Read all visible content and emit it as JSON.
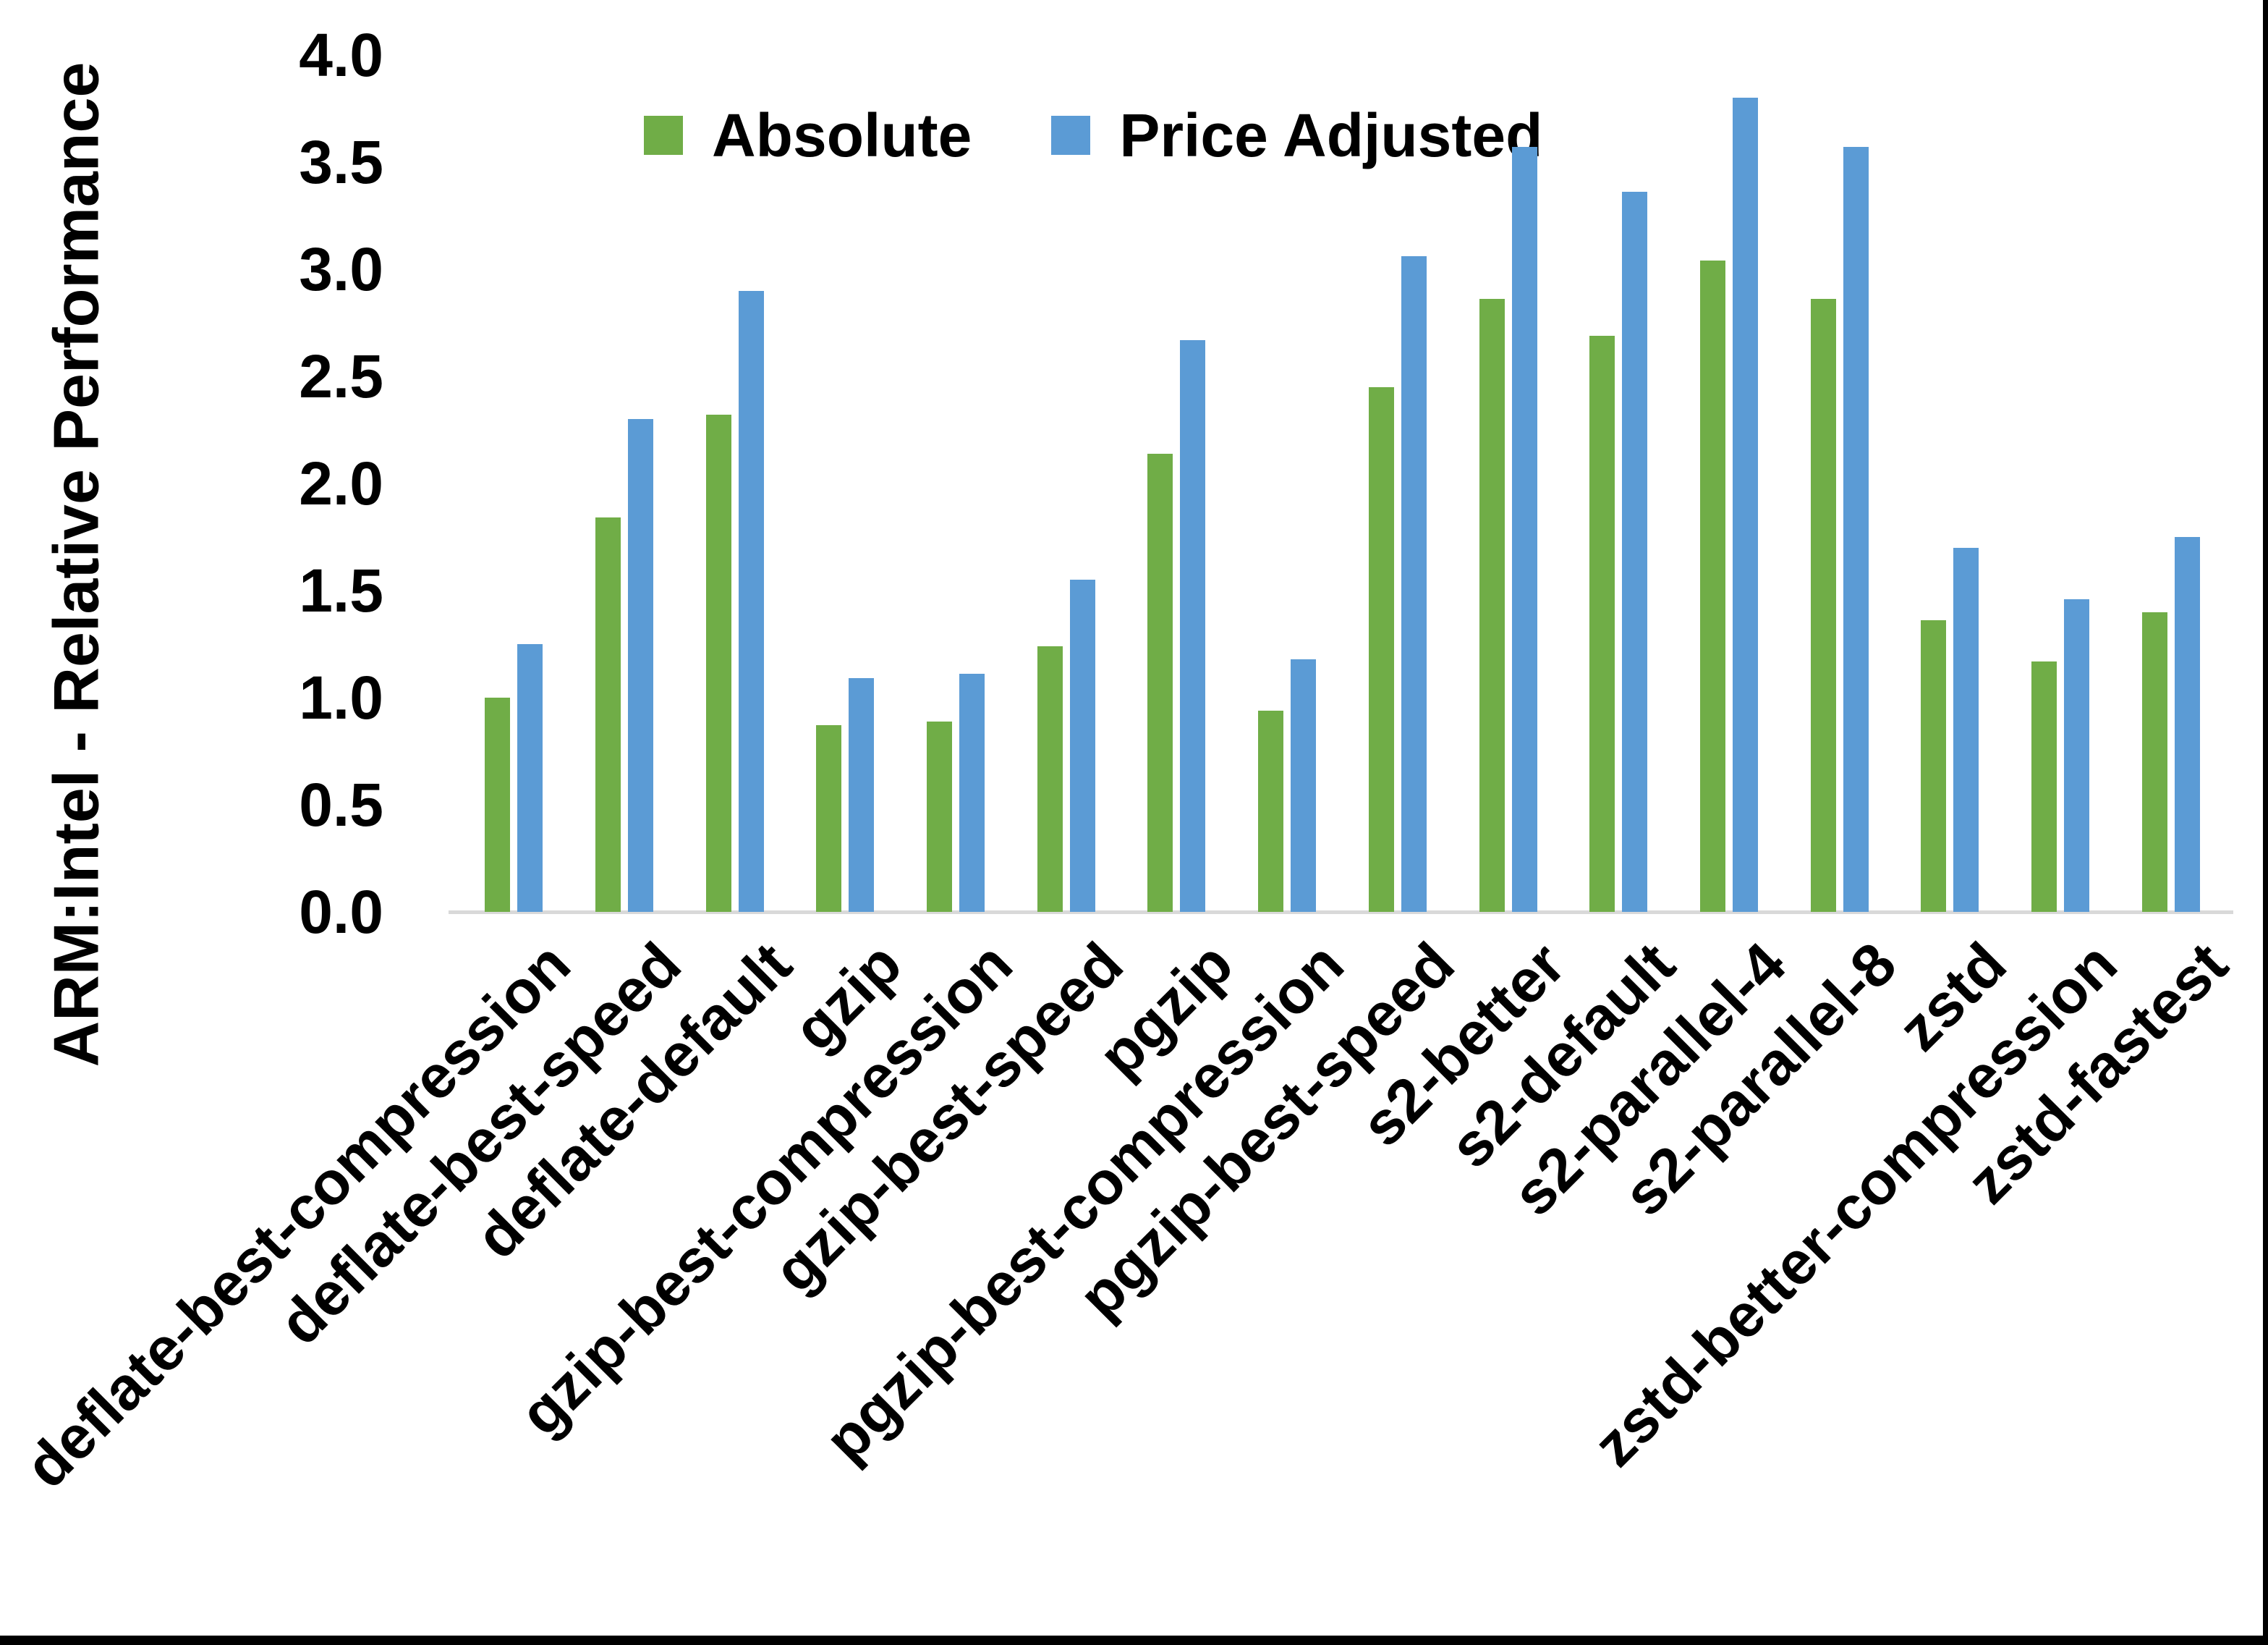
{
  "page": {
    "background": "#FFFFFF",
    "frame_right_color": "#000000",
    "frame_bottom_color": "#000000"
  },
  "chart_data": {
    "type": "bar",
    "title": "",
    "xlabel": "",
    "ylabel": "ARM:Intel - Relative Performance",
    "ylim": [
      0.0,
      4.0
    ],
    "ytick_labels": [
      "0.0",
      "0.5",
      "1.0",
      "1.5",
      "2.0",
      "2.5",
      "3.0",
      "3.5",
      "4.0"
    ],
    "grid": false,
    "legend_position": "top-center",
    "axis_line_color": "#D9D9D9",
    "categories": [
      "deflate-best-compression",
      "deflate-best-speed",
      "deflate-default",
      "gzip",
      "gzip-best-compression",
      "gzip-best-speed",
      "pgzip",
      "pgzip-best-compression",
      "pgzip-best-speed",
      "s2-better",
      "s2-default",
      "s2-parallel-4",
      "s2-parallel-8",
      "zstd",
      "zstd-better-compression",
      "zstd-fastest"
    ],
    "series": [
      {
        "name": "Absolute",
        "color": "#70AD47",
        "values": [
          1.0,
          1.84,
          2.32,
          0.87,
          0.89,
          1.24,
          2.14,
          0.94,
          2.45,
          2.86,
          2.69,
          3.04,
          2.86,
          1.36,
          1.17,
          1.4
        ]
      },
      {
        "name": "Price Adjusted",
        "color": "#5B9BD5",
        "values": [
          1.25,
          2.3,
          2.9,
          1.09,
          1.11,
          1.55,
          2.67,
          1.18,
          3.06,
          3.57,
          3.36,
          3.8,
          3.57,
          1.7,
          1.46,
          1.75
        ]
      }
    ]
  }
}
